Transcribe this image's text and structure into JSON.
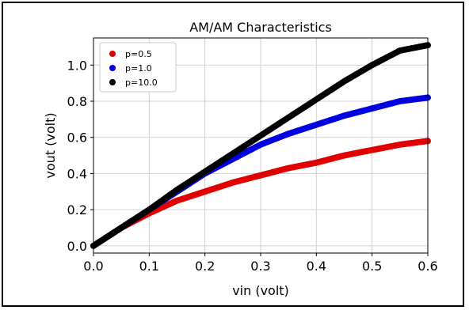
{
  "chart_data": {
    "type": "scatter",
    "title": "AM/AM Characteristics",
    "xlabel": "vin (volt)",
    "ylabel": "vout (volt)",
    "xlim": [
      0.0,
      0.6
    ],
    "ylim": [
      -0.04,
      1.15
    ],
    "xticks": [
      "0.0",
      "0.1",
      "0.2",
      "0.3",
      "0.4",
      "0.5",
      "0.6"
    ],
    "yticks": [
      "0.0",
      "0.2",
      "0.4",
      "0.6",
      "0.8",
      "1.0"
    ],
    "grid": true,
    "legend_position": "top-left",
    "series": [
      {
        "name": "p=0.5",
        "color": "#e00000",
        "x": [
          0.0,
          0.05,
          0.1,
          0.15,
          0.2,
          0.25,
          0.3,
          0.35,
          0.4,
          0.45,
          0.5,
          0.55,
          0.6
        ],
        "y": [
          0.0,
          0.1,
          0.18,
          0.25,
          0.3,
          0.35,
          0.39,
          0.43,
          0.46,
          0.5,
          0.53,
          0.56,
          0.58
        ]
      },
      {
        "name": "p=1.0",
        "color": "#0000e0",
        "x": [
          0.0,
          0.05,
          0.1,
          0.15,
          0.2,
          0.25,
          0.3,
          0.35,
          0.4,
          0.45,
          0.5,
          0.55,
          0.6
        ],
        "y": [
          0.0,
          0.1,
          0.2,
          0.3,
          0.4,
          0.48,
          0.56,
          0.62,
          0.67,
          0.72,
          0.76,
          0.8,
          0.82
        ]
      },
      {
        "name": "p=10.0",
        "color": "#000000",
        "x": [
          0.0,
          0.05,
          0.1,
          0.15,
          0.2,
          0.25,
          0.3,
          0.35,
          0.4,
          0.45,
          0.5,
          0.55,
          0.6
        ],
        "y": [
          0.0,
          0.1,
          0.2,
          0.31,
          0.41,
          0.51,
          0.61,
          0.71,
          0.81,
          0.91,
          1.0,
          1.08,
          1.11
        ]
      }
    ]
  }
}
